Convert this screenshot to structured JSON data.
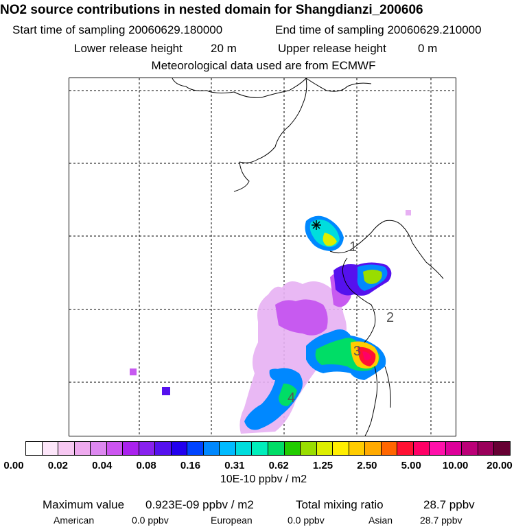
{
  "header": {
    "title": "NO2 source contributions in nested domain for Shangdianzi_200606",
    "start_label": "Start time of sampling 20060629.180000",
    "end_label": "End time of sampling 20060629.210000",
    "lower_label": "Lower release height",
    "lower_value": "20 m",
    "upper_label": "Upper release height",
    "upper_value": "0 m",
    "met_line": "Meteorological data used are from ECMWF"
  },
  "map": {
    "receptor_symbol": "star",
    "region_labels": [
      "1",
      "2",
      "3",
      "4"
    ]
  },
  "colorbar": {
    "colors": [
      "#ffffff",
      "#fde6fa",
      "#f7c8f2",
      "#eeaaee",
      "#dd88f0",
      "#cc55f0",
      "#aa22ee",
      "#8822ee",
      "#5511ee",
      "#2200ee",
      "#0044ff",
      "#0088ff",
      "#00bbff",
      "#00dddd",
      "#00eebb",
      "#00dd66",
      "#22cc00",
      "#99dd00",
      "#ddee00",
      "#ffee00",
      "#ffcc00",
      "#ffaa00",
      "#ff6600",
      "#ff1133",
      "#ff0066",
      "#ff11aa",
      "#dd0099",
      "#bb0077",
      "#99005a",
      "#660033"
    ],
    "tick_labels": [
      "0.00",
      "0.02",
      "0.04",
      "0.08",
      "0.16",
      "0.31",
      "0.62",
      "1.25",
      "2.50",
      "5.00",
      "10.00",
      "20.00"
    ],
    "units": "10E-10 ppbv / m2"
  },
  "footer": {
    "max_label": "Maximum value",
    "max_value": "0.923E-09 ppbv / m2",
    "total_label": "Total mixing ratio",
    "total_value": "28.7 ppbv",
    "regions": [
      {
        "name": "American",
        "value": "0.0 ppbv"
      },
      {
        "name": "European",
        "value": "0.0 ppbv"
      },
      {
        "name": "Asian",
        "value": "28.7 ppbv"
      }
    ]
  }
}
